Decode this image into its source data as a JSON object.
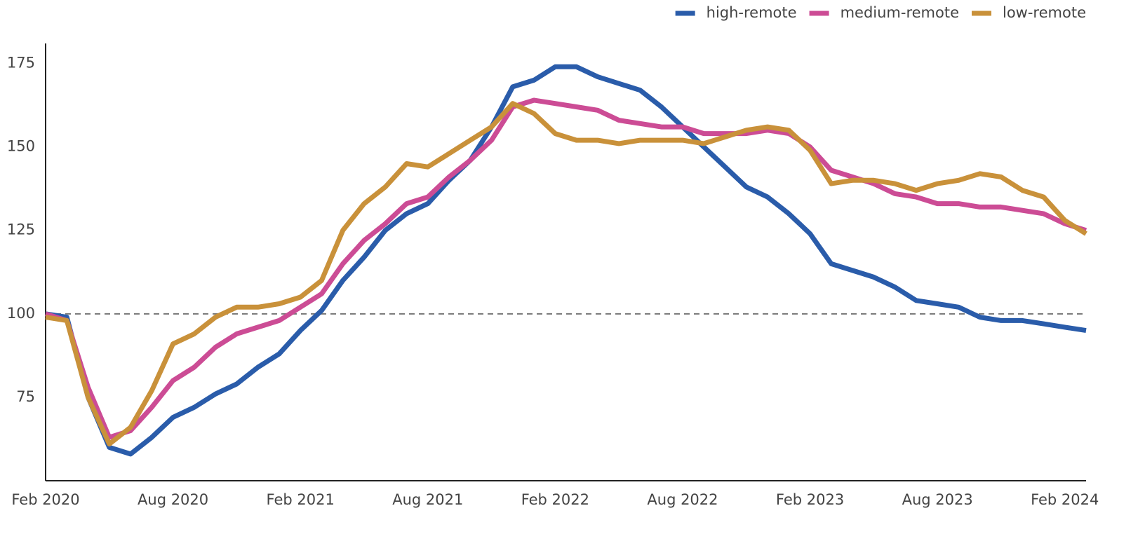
{
  "chart_data": {
    "type": "line",
    "categories": [
      "Feb 2020",
      null,
      null,
      null,
      null,
      null,
      "Aug 2020",
      null,
      null,
      null,
      null,
      null,
      "Feb 2021",
      null,
      null,
      null,
      null,
      null,
      "Aug 2021",
      null,
      null,
      null,
      null,
      null,
      "Feb 2022",
      null,
      null,
      null,
      null,
      null,
      "Aug 2022",
      null,
      null,
      null,
      null,
      null,
      "Feb 2023",
      null,
      null,
      null,
      null,
      null,
      "Aug 2023",
      null,
      null,
      null,
      null,
      null,
      "Feb 2024",
      null
    ],
    "series": [
      {
        "name": "high-remote",
        "color": "#2a5caa",
        "values": [
          100,
          99,
          75,
          60,
          58,
          63,
          69,
          72,
          76,
          79,
          84,
          88,
          95,
          101,
          110,
          117,
          125,
          130,
          133,
          140,
          146,
          156,
          168,
          170,
          174,
          174,
          171,
          169,
          167,
          162,
          156,
          150,
          144,
          138,
          135,
          130,
          124,
          115,
          113,
          111,
          108,
          104,
          103,
          102,
          99,
          98,
          98,
          97,
          96,
          95
        ]
      },
      {
        "name": "medium-remote",
        "color": "#cc4c95",
        "values": [
          100,
          98,
          78,
          63,
          65,
          72,
          80,
          84,
          90,
          94,
          96,
          98,
          102,
          106,
          115,
          122,
          127,
          133,
          135,
          141,
          146,
          152,
          162,
          164,
          163,
          162,
          161,
          158,
          157,
          156,
          156,
          154,
          154,
          154,
          155,
          154,
          150,
          143,
          141,
          139,
          136,
          135,
          133,
          133,
          132,
          132,
          131,
          130,
          127,
          125
        ]
      },
      {
        "name": "low-remote",
        "color": "#c9913a",
        "values": [
          99,
          98,
          75,
          61,
          66,
          77,
          91,
          94,
          99,
          102,
          102,
          103,
          105,
          110,
          125,
          133,
          138,
          145,
          144,
          148,
          152,
          156,
          163,
          160,
          154,
          152,
          152,
          151,
          152,
          152,
          152,
          151,
          153,
          155,
          156,
          155,
          149,
          139,
          140,
          140,
          139,
          137,
          139,
          140,
          142,
          141,
          137,
          135,
          128,
          124
        ]
      }
    ],
    "ylim": [
      50,
      181
    ],
    "yticks": [
      75,
      100,
      125,
      150,
      175
    ],
    "reference_line": 100,
    "legend": "top-right"
  }
}
